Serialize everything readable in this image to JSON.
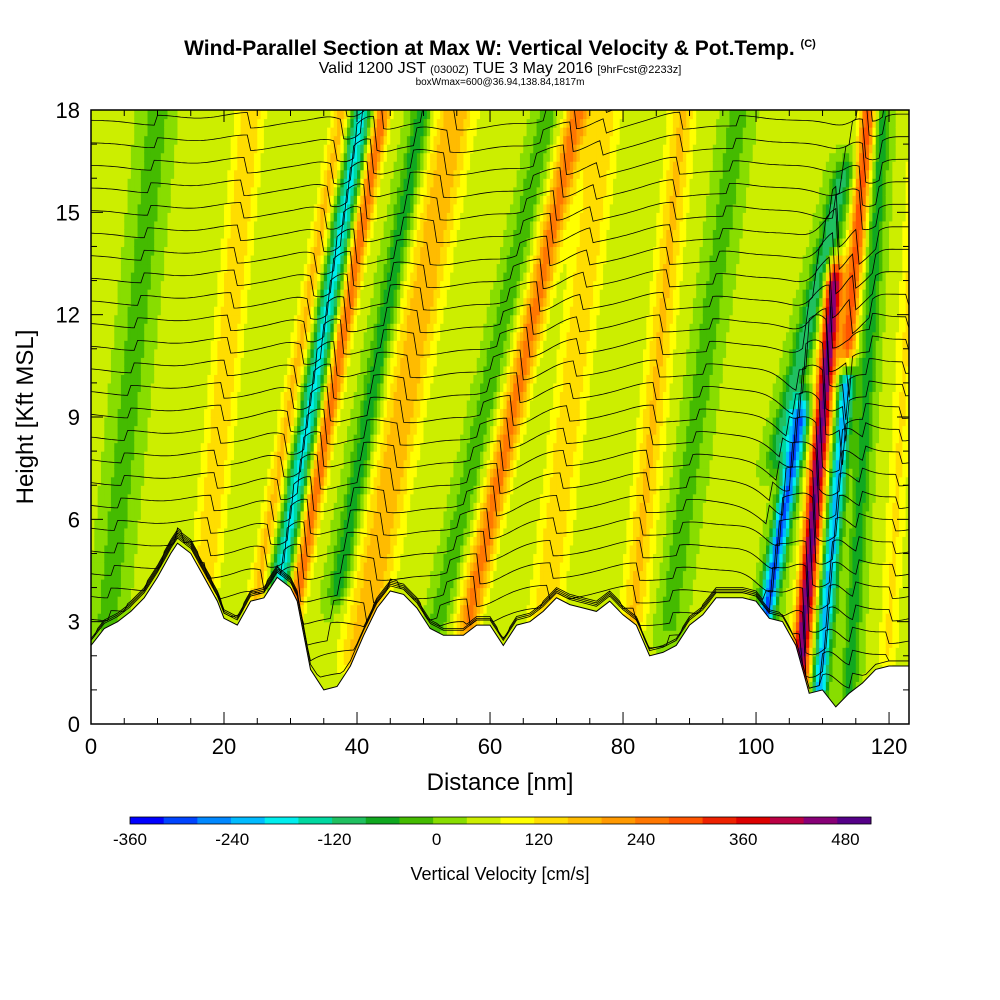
{
  "title": {
    "main": "Wind-Parallel Section at Max W: Vertical Velocity & Pot.Temp.",
    "copyright": "(C)",
    "valid_prefix": "Valid 1200 JST",
    "valid_utc": "(0300Z)",
    "valid_date": "TUE 3 May 2016",
    "forecast": "[9hrFcst@2233z]",
    "box": "boxWmax=600@36.94,138.84,1817m"
  },
  "chart_data": {
    "type": "heatmap",
    "xlabel": "Distance [nm]",
    "ylabel": "Height [Kft MSL]",
    "xlim": [
      0,
      123
    ],
    "ylim": [
      0,
      18
    ],
    "x_ticks": [
      "0",
      "20",
      "40",
      "60",
      "80",
      "100",
      "120"
    ],
    "y_ticks": [
      "0",
      "3",
      "6",
      "9",
      "12",
      "15",
      "18"
    ],
    "colorbar": {
      "label": "Vertical Velocity [cm/s]",
      "ticks": [
        "-360",
        "-240",
        "-120",
        "0",
        "120",
        "240",
        "360",
        "480"
      ],
      "range": [
        -360,
        510
      ],
      "colors": [
        "#0000ff",
        "#0044ff",
        "#0088ff",
        "#00bbff",
        "#00eeee",
        "#00d8a0",
        "#20c060",
        "#10a820",
        "#44bb00",
        "#88dd00",
        "#ccee00",
        "#ffff00",
        "#ffdd00",
        "#ffbb00",
        "#ff9900",
        "#ff7700",
        "#ff5500",
        "#ee2200",
        "#dd0000",
        "#bb0044",
        "#880077",
        "#550088"
      ]
    },
    "terrain_kft": [
      [
        0,
        2.3
      ],
      [
        2,
        2.8
      ],
      [
        4,
        3.0
      ],
      [
        6,
        3.3
      ],
      [
        8,
        3.7
      ],
      [
        10,
        4.3
      ],
      [
        12,
        5.0
      ],
      [
        13,
        5.3
      ],
      [
        15,
        5.0
      ],
      [
        17,
        4.3
      ],
      [
        19,
        3.6
      ],
      [
        20,
        3.1
      ],
      [
        22,
        2.9
      ],
      [
        24,
        3.6
      ],
      [
        26,
        3.7
      ],
      [
        28,
        4.3
      ],
      [
        30,
        4.0
      ],
      [
        31,
        3.6
      ],
      [
        33,
        1.6
      ],
      [
        35,
        1.0
      ],
      [
        37,
        1.1
      ],
      [
        39,
        1.7
      ],
      [
        41,
        2.6
      ],
      [
        43,
        3.4
      ],
      [
        45,
        3.9
      ],
      [
        47,
        3.8
      ],
      [
        49,
        3.4
      ],
      [
        51,
        2.8
      ],
      [
        53,
        2.6
      ],
      [
        56,
        2.6
      ],
      [
        58,
        2.9
      ],
      [
        60,
        2.9
      ],
      [
        62,
        2.3
      ],
      [
        64,
        2.9
      ],
      [
        66,
        3.0
      ],
      [
        68,
        3.3
      ],
      [
        70,
        3.7
      ],
      [
        72,
        3.5
      ],
      [
        74,
        3.4
      ],
      [
        76,
        3.3
      ],
      [
        78,
        3.6
      ],
      [
        80,
        3.2
      ],
      [
        82,
        2.9
      ],
      [
        84,
        2.0
      ],
      [
        86,
        2.1
      ],
      [
        88,
        2.3
      ],
      [
        90,
        2.9
      ],
      [
        92,
        3.2
      ],
      [
        94,
        3.7
      ],
      [
        96,
        3.7
      ],
      [
        98,
        3.7
      ],
      [
        100,
        3.6
      ],
      [
        102,
        3.1
      ],
      [
        104,
        3.0
      ],
      [
        106,
        2.3
      ],
      [
        108,
        0.9
      ],
      [
        110,
        1.0
      ],
      [
        112,
        0.5
      ],
      [
        114,
        0.9
      ],
      [
        116,
        1.2
      ],
      [
        118,
        1.6
      ],
      [
        120,
        1.7
      ],
      [
        123,
        1.7
      ]
    ],
    "w_features": [
      {
        "x": 30.0,
        "w": -220,
        "width": 1.6,
        "tilt": 0.9,
        "zmin": 4,
        "zmax": 18
      },
      {
        "x": 33.0,
        "w": 230,
        "width": 1.3,
        "tilt": 0.9,
        "zmin": 3,
        "zmax": 18
      },
      {
        "x": 27.0,
        "w": 130,
        "width": 1.4,
        "tilt": 0.9,
        "zmin": 3,
        "zmax": 18
      },
      {
        "x": 18.0,
        "w": 110,
        "width": 2.2,
        "tilt": 0.5,
        "zmin": 4,
        "zmax": 18
      },
      {
        "x": 44.0,
        "w": 150,
        "width": 3.0,
        "tilt": 0.9,
        "zmin": 2,
        "zmax": 18
      },
      {
        "x": 39.0,
        "w": -120,
        "width": 1.5,
        "tilt": 0.9,
        "zmin": 4,
        "zmax": 18
      },
      {
        "x": 60.0,
        "w": 210,
        "width": 1.8,
        "tilt": 1.1,
        "zmin": 3,
        "zmax": 18
      },
      {
        "x": 55.5,
        "w": -80,
        "width": 1.5,
        "tilt": 1.1,
        "zmin": 3,
        "zmax": 18
      },
      {
        "x": 70.0,
        "w": 110,
        "width": 2.5,
        "tilt": 0.6,
        "zmin": 3,
        "zmax": 18
      },
      {
        "x": 83.0,
        "w": 120,
        "width": 2.0,
        "tilt": 0.5,
        "zmin": 3,
        "zmax": 18
      },
      {
        "x": 89.0,
        "w": -70,
        "width": 1.8,
        "tilt": 0.7,
        "zmin": 3,
        "zmax": 18
      },
      {
        "x": 104.0,
        "w": -330,
        "width": 1.3,
        "tilt": 0.9,
        "zmin": 2.5,
        "zmax": 9.0
      },
      {
        "x": 101.0,
        "w": -150,
        "width": 1.6,
        "tilt": 1.2,
        "zmin": 8.0,
        "zmax": 16.0
      },
      {
        "x": 108.6,
        "w": 440,
        "width": 1.3,
        "tilt": 0.45,
        "zmin": 1.0,
        "zmax": 13.0
      },
      {
        "x": 111.5,
        "w": 260,
        "width": 1.2,
        "tilt": 0.45,
        "zmin": 11.0,
        "zmax": 18.0
      },
      {
        "x": 111.8,
        "w": -270,
        "width": 1.2,
        "tilt": 0.45,
        "zmin": 1.0,
        "zmax": 10.0
      },
      {
        "x": 115.5,
        "w": -110,
        "width": 1.2,
        "tilt": 0.3,
        "zmin": 1.0,
        "zmax": 18.0
      },
      {
        "x": 4.0,
        "w": -70,
        "width": 2.0,
        "tilt": 0.5,
        "zmin": 3.0,
        "zmax": 18.0
      },
      {
        "x": 121.0,
        "w": 80,
        "width": 1.5,
        "tilt": 0.3,
        "zmin": 2.0,
        "zmax": 18.0
      }
    ],
    "theta_levels_k": [
      296,
      297,
      298,
      299,
      300,
      301,
      302,
      303,
      304,
      305,
      306,
      307,
      308,
      309,
      310,
      311,
      312,
      313,
      314,
      315,
      316,
      317,
      318,
      319,
      320,
      321,
      322,
      323,
      324
    ]
  }
}
